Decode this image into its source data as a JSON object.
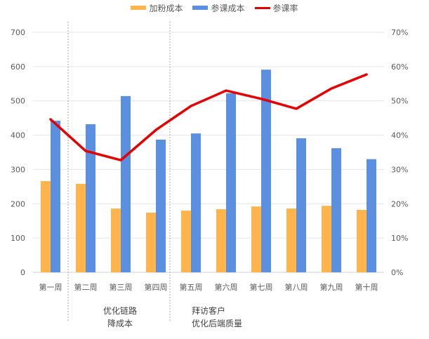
{
  "chart_data": {
    "type": "bar",
    "title": "",
    "categories": [
      "第一周",
      "第二周",
      "第三周",
      "第四周",
      "第五周",
      "第六周",
      "第七周",
      "第八周",
      "第九周",
      "第十周"
    ],
    "series": [
      {
        "name": "加粉成本",
        "type": "bar",
        "axis": "left",
        "color": "#FFB54C",
        "values": [
          266,
          258,
          186,
          174,
          180,
          184,
          192,
          186,
          194,
          182
        ]
      },
      {
        "name": "参课成本",
        "type": "bar",
        "axis": "left",
        "color": "#5B8FE0",
        "values": [
          442,
          432,
          514,
          387,
          405,
          522,
          591,
          391,
          362,
          330
        ]
      },
      {
        "name": "参课率",
        "type": "line",
        "axis": "right",
        "color": "#E60000",
        "values": [
          44.6,
          35.4,
          32.7,
          41.5,
          48.5,
          53.0,
          50.6,
          47.7,
          53.6,
          57.7
        ]
      }
    ],
    "xlabel": "",
    "ylabel": "",
    "ylim": [
      0,
      700
    ],
    "y_ticks": [
      "0",
      "100",
      "200",
      "300",
      "400",
      "500",
      "600",
      "700"
    ],
    "y2lim": [
      0,
      70
    ],
    "y2_ticks": [
      "0%",
      "10%",
      "20%",
      "30%",
      "40%",
      "50%",
      "60%",
      "70%"
    ],
    "grid": true,
    "legend_position": "top",
    "annotations": [
      {
        "after_category_index": 0,
        "lines": [
          "优化链路",
          "降成本"
        ]
      },
      {
        "after_category_index": 3,
        "lines": [
          "拜访客户",
          "优化后端质量"
        ]
      }
    ]
  },
  "legend": {
    "items": [
      {
        "label": "加粉成本",
        "color": "#FFB54C",
        "kind": "bar"
      },
      {
        "label": "参课成本",
        "color": "#5B8FE0",
        "kind": "bar"
      },
      {
        "label": "参课率",
        "color": "#E60000",
        "kind": "line"
      }
    ]
  }
}
